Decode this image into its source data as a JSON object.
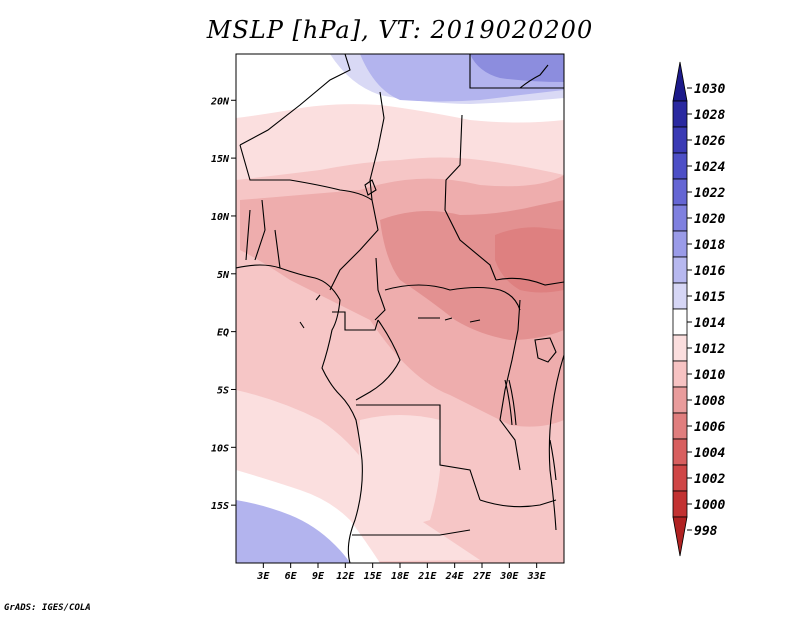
{
  "title": "MSLP [hPa], VT: 2019020200",
  "credit": "GrADS: IGES/COLA",
  "map": {
    "lon_range": [
      0,
      36
    ],
    "lat_range": [
      -20,
      24
    ],
    "lat_ticks": [
      {
        "value": 20,
        "label": "20N"
      },
      {
        "value": 15,
        "label": "15N"
      },
      {
        "value": 10,
        "label": "10N"
      },
      {
        "value": 5,
        "label": "5N"
      },
      {
        "value": 0,
        "label": "EQ"
      },
      {
        "value": -5,
        "label": "5S"
      },
      {
        "value": -10,
        "label": "10S"
      },
      {
        "value": -15,
        "label": "15S"
      }
    ],
    "lon_ticks": [
      {
        "value": 3,
        "label": "3E"
      },
      {
        "value": 6,
        "label": "6E"
      },
      {
        "value": 9,
        "label": "9E"
      },
      {
        "value": 12,
        "label": "12E"
      },
      {
        "value": 15,
        "label": "15E"
      },
      {
        "value": 18,
        "label": "18E"
      },
      {
        "value": 21,
        "label": "21E"
      },
      {
        "value": 24,
        "label": "24E"
      },
      {
        "value": 27,
        "label": "27E"
      },
      {
        "value": 30,
        "label": "30E"
      },
      {
        "value": 33,
        "label": "33E"
      }
    ]
  },
  "colorbar": {
    "levels": [
      {
        "label": "1030",
        "color": "#1c1a8a"
      },
      {
        "label": "1028",
        "color": "#2a29a0"
      },
      {
        "label": "1026",
        "color": "#3a3ab4"
      },
      {
        "label": "1024",
        "color": "#4d4fc6"
      },
      {
        "label": "1022",
        "color": "#6566d4"
      },
      {
        "label": "1020",
        "color": "#7f80df"
      },
      {
        "label": "1018",
        "color": "#9a9be8"
      },
      {
        "label": "1016",
        "color": "#b7b8ef"
      },
      {
        "label": "1015",
        "color": "#d6d6f5"
      },
      {
        "label": "1014",
        "color": "#ffffff"
      },
      {
        "label": "1012",
        "color": "#fbdede"
      },
      {
        "label": "1010",
        "color": "#f7c3c3"
      },
      {
        "label": "1008",
        "color": "#e99c9c"
      },
      {
        "label": "1006",
        "color": "#e07e7e"
      },
      {
        "label": "1004",
        "color": "#d85f5f"
      },
      {
        "label": "1002",
        "color": "#cf4646"
      },
      {
        "label": "1000",
        "color": "#c23232"
      },
      {
        "label": "998",
        "color": "#b02222"
      }
    ]
  },
  "field_colors": {
    "very_high": "#8c8dde",
    "high": "#b3b4ee",
    "neutral_high": "#d9d9f5",
    "white": "#ffffff",
    "l1012": "#fbdfdf",
    "l1010": "#f6c6c6",
    "l1008": "#eeadad",
    "l1006": "#e39191",
    "l1004": "#de8080"
  }
}
